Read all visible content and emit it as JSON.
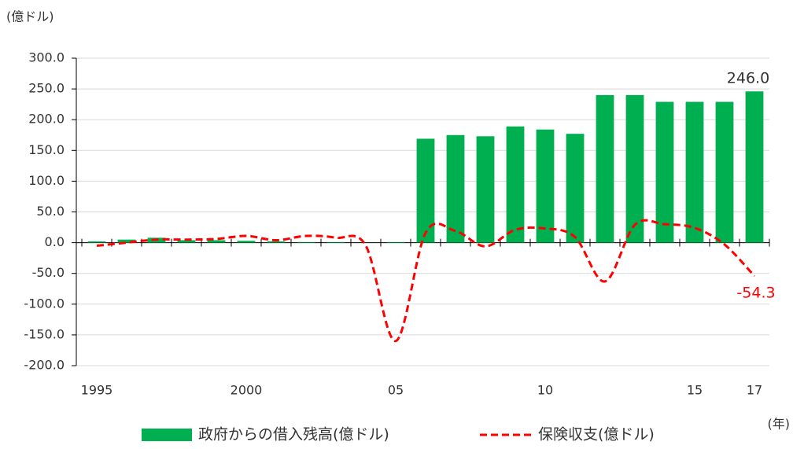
{
  "chart_data": {
    "type": "bar-line",
    "y_unit_label": "(億ドル)",
    "x_unit_label": "(年)",
    "categories": [
      "1995",
      null,
      null,
      null,
      null,
      "2000",
      null,
      null,
      null,
      null,
      "05",
      null,
      null,
      null,
      null,
      "10",
      null,
      null,
      null,
      null,
      "15",
      null,
      "17"
    ],
    "series": [
      {
        "name": "政府からの借入残高(億ドル)",
        "type": "bar",
        "color": "#00b050",
        "values": [
          2,
          5,
          8,
          4,
          4,
          3,
          2,
          1,
          1,
          0,
          1,
          169,
          175,
          173,
          189,
          184,
          177,
          240,
          240,
          229,
          229,
          229,
          246
        ],
        "value_labels": [
          null,
          null,
          null,
          null,
          null,
          null,
          null,
          null,
          null,
          null,
          null,
          null,
          null,
          null,
          null,
          null,
          null,
          null,
          null,
          null,
          null,
          null,
          "246.0"
        ]
      },
      {
        "name": "保険収支(億ドル)",
        "type": "line",
        "color": "#ff0000",
        "dashed": true,
        "smooth": true,
        "values": [
          -5,
          0,
          5,
          5,
          6,
          11,
          4,
          11,
          8,
          -5,
          -160,
          16,
          19,
          -6,
          21,
          23,
          9,
          -63,
          29,
          30,
          24,
          -3,
          -54.3
        ],
        "value_labels": [
          null,
          null,
          null,
          null,
          null,
          null,
          null,
          null,
          null,
          null,
          null,
          null,
          null,
          null,
          null,
          null,
          null,
          null,
          null,
          null,
          null,
          null,
          "-54.3"
        ]
      }
    ],
    "ylim": [
      -200,
      300
    ],
    "yticks": [
      {
        "value": -200,
        "label": "-200.0"
      },
      {
        "value": -150,
        "label": "-150.0"
      },
      {
        "value": -100,
        "label": "-100.0"
      },
      {
        "value": -50,
        "label": "-50.0"
      },
      {
        "value": 0,
        "label": "0.0"
      },
      {
        "value": 50,
        "label": "50.0"
      },
      {
        "value": 100,
        "label": "100.0"
      },
      {
        "value": 150,
        "label": "150.0"
      },
      {
        "value": 200,
        "label": "200.0"
      },
      {
        "value": 250,
        "label": "250.0"
      },
      {
        "value": 300,
        "label": "300.0"
      }
    ],
    "grid": true,
    "legend": "bottom"
  }
}
